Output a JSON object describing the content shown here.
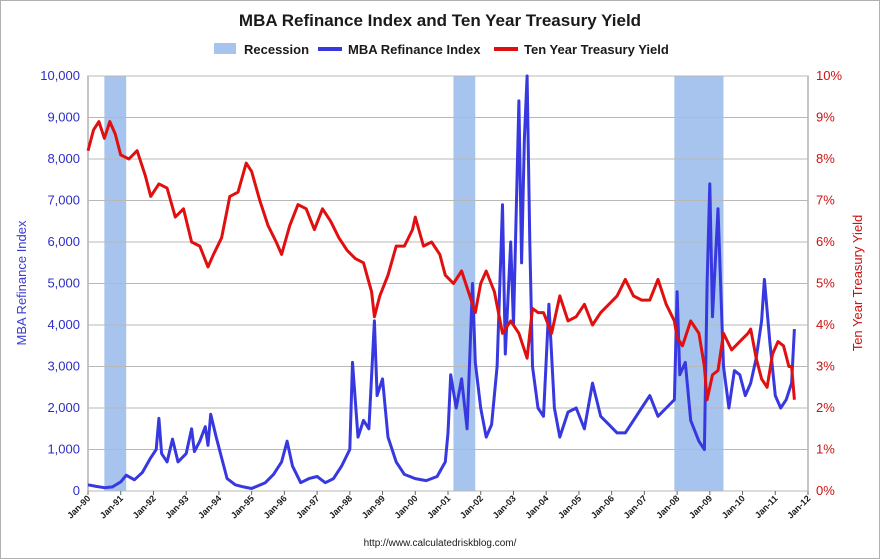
{
  "chart_data": {
    "type": "line",
    "title": "MBA Refinance Index and Ten Year Treasury Yield",
    "legend": [
      {
        "label": "Recession",
        "kind": "band",
        "color": "#a6c4ee"
      },
      {
        "label": "MBA Refinance Index",
        "kind": "line",
        "color": "#3838e0"
      },
      {
        "label": "Ten Year Treasury Yield",
        "kind": "line",
        "color": "#e01010"
      }
    ],
    "legend_position": "top-center",
    "grid": true,
    "x_axis": {
      "type": "date",
      "range": [
        "1990-01",
        "2012-01"
      ],
      "tick_labels": [
        "Jan-90",
        "Jan-91",
        "Jan-92",
        "Jan-93",
        "Jan-94",
        "Jan-95",
        "Jan-96",
        "Jan-97",
        "Jan-98",
        "Jan-99",
        "Jan-00",
        "Jan-01",
        "Jan-02",
        "Jan-03",
        "Jan-04",
        "Jan-05",
        "Jan-06",
        "Jan-07",
        "Jan-08",
        "Jan-09",
        "Jan-10",
        "Jan-11",
        "Jan-12"
      ]
    },
    "y_left": {
      "label": "MBA Refinance Index",
      "range": [
        0,
        10000
      ],
      "tick_labels": [
        "0",
        "1,000",
        "2,000",
        "3,000",
        "4,000",
        "5,000",
        "6,000",
        "7,000",
        "8,000",
        "9,000",
        "10,000"
      ]
    },
    "y_right": {
      "label": "Ten Year Treasury Yield",
      "range": [
        0,
        10
      ],
      "unit": "%",
      "tick_labels": [
        "0%",
        "1%",
        "2%",
        "3%",
        "4%",
        "5%",
        "6%",
        "7%",
        "8%",
        "9%",
        "10%"
      ]
    },
    "recessions": [
      {
        "start": "1990-07",
        "end": "1991-03"
      },
      {
        "start": "2001-03",
        "end": "2001-11"
      },
      {
        "start": "2007-12",
        "end": "2009-06"
      }
    ],
    "series": [
      {
        "name": "MBA Refinance Index",
        "axis": "left",
        "color": "#3838e0",
        "points": [
          [
            "1990-01",
            150
          ],
          [
            "1990-04",
            110
          ],
          [
            "1990-07",
            80
          ],
          [
            "1990-10",
            100
          ],
          [
            "1991-01",
            220
          ],
          [
            "1991-03",
            380
          ],
          [
            "1991-06",
            270
          ],
          [
            "1991-09",
            450
          ],
          [
            "1991-12",
            800
          ],
          [
            "1992-02",
            1000
          ],
          [
            "1992-03",
            1750
          ],
          [
            "1992-04",
            900
          ],
          [
            "1992-06",
            700
          ],
          [
            "1992-08",
            1250
          ],
          [
            "1992-10",
            700
          ],
          [
            "1993-01",
            900
          ],
          [
            "1993-03",
            1500
          ],
          [
            "1993-04",
            950
          ],
          [
            "1993-06",
            1200
          ],
          [
            "1993-08",
            1550
          ],
          [
            "1993-09",
            1100
          ],
          [
            "1993-10",
            1850
          ],
          [
            "1993-12",
            1300
          ],
          [
            "1994-02",
            800
          ],
          [
            "1994-04",
            300
          ],
          [
            "1994-07",
            150
          ],
          [
            "1994-10",
            100
          ],
          [
            "1995-01",
            60
          ],
          [
            "1995-06",
            200
          ],
          [
            "1995-09",
            400
          ],
          [
            "1995-12",
            700
          ],
          [
            "1996-02",
            1200
          ],
          [
            "1996-04",
            600
          ],
          [
            "1996-07",
            200
          ],
          [
            "1996-10",
            300
          ],
          [
            "1997-01",
            350
          ],
          [
            "1997-04",
            200
          ],
          [
            "1997-07",
            300
          ],
          [
            "1997-10",
            600
          ],
          [
            "1998-01",
            1000
          ],
          [
            "1998-02",
            3100
          ],
          [
            "1998-04",
            1300
          ],
          [
            "1998-06",
            1700
          ],
          [
            "1998-08",
            1500
          ],
          [
            "1998-10",
            4100
          ],
          [
            "1998-11",
            2300
          ],
          [
            "1999-01",
            2700
          ],
          [
            "1999-03",
            1300
          ],
          [
            "1999-06",
            700
          ],
          [
            "1999-09",
            400
          ],
          [
            "2000-01",
            300
          ],
          [
            "2000-05",
            250
          ],
          [
            "2000-09",
            350
          ],
          [
            "2000-12",
            700
          ],
          [
            "2001-01",
            1400
          ],
          [
            "2001-02",
            2800
          ],
          [
            "2001-04",
            2000
          ],
          [
            "2001-06",
            2700
          ],
          [
            "2001-08",
            1500
          ],
          [
            "2001-10",
            5000
          ],
          [
            "2001-11",
            3100
          ],
          [
            "2002-01",
            2000
          ],
          [
            "2002-03",
            1300
          ],
          [
            "2002-05",
            1600
          ],
          [
            "2002-07",
            3000
          ],
          [
            "2002-09",
            6900
          ],
          [
            "2002-10",
            3300
          ],
          [
            "2002-12",
            6000
          ],
          [
            "2003-01",
            4000
          ],
          [
            "2003-03",
            9400
          ],
          [
            "2003-04",
            5500
          ],
          [
            "2003-05",
            8500
          ],
          [
            "2003-06",
            10000
          ],
          [
            "2003-07",
            6000
          ],
          [
            "2003-08",
            3000
          ],
          [
            "2003-10",
            2000
          ],
          [
            "2003-12",
            1800
          ],
          [
            "2004-02",
            4500
          ],
          [
            "2004-04",
            2000
          ],
          [
            "2004-06",
            1300
          ],
          [
            "2004-09",
            1900
          ],
          [
            "2004-12",
            2000
          ],
          [
            "2005-03",
            1500
          ],
          [
            "2005-06",
            2600
          ],
          [
            "2005-09",
            1800
          ],
          [
            "2005-12",
            1600
          ],
          [
            "2006-03",
            1400
          ],
          [
            "2006-06",
            1400
          ],
          [
            "2006-09",
            1700
          ],
          [
            "2006-12",
            2000
          ],
          [
            "2007-03",
            2300
          ],
          [
            "2007-06",
            1800
          ],
          [
            "2007-09",
            2000
          ],
          [
            "2007-12",
            2200
          ],
          [
            "2008-01",
            4800
          ],
          [
            "2008-02",
            2800
          ],
          [
            "2008-04",
            3100
          ],
          [
            "2008-06",
            1700
          ],
          [
            "2008-09",
            1200
          ],
          [
            "2008-11",
            1000
          ],
          [
            "2008-12",
            5000
          ],
          [
            "2009-01",
            7400
          ],
          [
            "2009-02",
            4200
          ],
          [
            "2009-04",
            6800
          ],
          [
            "2009-06",
            3000
          ],
          [
            "2009-08",
            2000
          ],
          [
            "2009-10",
            2900
          ],
          [
            "2009-12",
            2800
          ],
          [
            "2010-02",
            2300
          ],
          [
            "2010-04",
            2600
          ],
          [
            "2010-06",
            3200
          ],
          [
            "2010-08",
            4100
          ],
          [
            "2010-09",
            5100
          ],
          [
            "2010-11",
            3600
          ],
          [
            "2011-01",
            2300
          ],
          [
            "2011-03",
            2000
          ],
          [
            "2011-05",
            2200
          ],
          [
            "2011-07",
            2600
          ],
          [
            "2011-08",
            3900
          ]
        ]
      },
      {
        "name": "Ten Year Treasury Yield",
        "axis": "right",
        "color": "#e01010",
        "points": [
          [
            "1990-01",
            8.2
          ],
          [
            "1990-03",
            8.7
          ],
          [
            "1990-05",
            8.9
          ],
          [
            "1990-07",
            8.5
          ],
          [
            "1990-09",
            8.9
          ],
          [
            "1990-11",
            8.6
          ],
          [
            "1991-01",
            8.1
          ],
          [
            "1991-04",
            8.0
          ],
          [
            "1991-07",
            8.2
          ],
          [
            "1991-10",
            7.6
          ],
          [
            "1991-12",
            7.1
          ],
          [
            "1992-03",
            7.4
          ],
          [
            "1992-06",
            7.3
          ],
          [
            "1992-09",
            6.6
          ],
          [
            "1992-12",
            6.8
          ],
          [
            "1993-03",
            6.0
          ],
          [
            "1993-06",
            5.9
          ],
          [
            "1993-09",
            5.4
          ],
          [
            "1993-11",
            5.7
          ],
          [
            "1994-02",
            6.1
          ],
          [
            "1994-05",
            7.1
          ],
          [
            "1994-08",
            7.2
          ],
          [
            "1994-11",
            7.9
          ],
          [
            "1995-01",
            7.7
          ],
          [
            "1995-04",
            7.0
          ],
          [
            "1995-07",
            6.4
          ],
          [
            "1995-10",
            6.0
          ],
          [
            "1995-12",
            5.7
          ],
          [
            "1996-03",
            6.4
          ],
          [
            "1996-06",
            6.9
          ],
          [
            "1996-09",
            6.8
          ],
          [
            "1996-12",
            6.3
          ],
          [
            "1997-03",
            6.8
          ],
          [
            "1997-06",
            6.5
          ],
          [
            "1997-09",
            6.1
          ],
          [
            "1997-12",
            5.8
          ],
          [
            "1998-03",
            5.6
          ],
          [
            "1998-06",
            5.5
          ],
          [
            "1998-09",
            4.8
          ],
          [
            "1998-10",
            4.2
          ],
          [
            "1998-12",
            4.7
          ],
          [
            "1999-03",
            5.2
          ],
          [
            "1999-06",
            5.9
          ],
          [
            "1999-09",
            5.9
          ],
          [
            "1999-12",
            6.3
          ],
          [
            "2000-01",
            6.6
          ],
          [
            "2000-04",
            5.9
          ],
          [
            "2000-07",
            6.0
          ],
          [
            "2000-10",
            5.7
          ],
          [
            "2000-12",
            5.2
          ],
          [
            "2001-03",
            5.0
          ],
          [
            "2001-06",
            5.3
          ],
          [
            "2001-09",
            4.7
          ],
          [
            "2001-11",
            4.3
          ],
          [
            "2002-01",
            5.0
          ],
          [
            "2002-03",
            5.3
          ],
          [
            "2002-06",
            4.8
          ],
          [
            "2002-09",
            3.8
          ],
          [
            "2002-12",
            4.1
          ],
          [
            "2003-03",
            3.8
          ],
          [
            "2003-06",
            3.2
          ],
          [
            "2003-08",
            4.4
          ],
          [
            "2003-10",
            4.3
          ],
          [
            "2003-12",
            4.3
          ],
          [
            "2004-03",
            3.8
          ],
          [
            "2004-06",
            4.7
          ],
          [
            "2004-09",
            4.1
          ],
          [
            "2004-12",
            4.2
          ],
          [
            "2005-03",
            4.5
          ],
          [
            "2005-06",
            4.0
          ],
          [
            "2005-09",
            4.3
          ],
          [
            "2005-12",
            4.5
          ],
          [
            "2006-03",
            4.7
          ],
          [
            "2006-06",
            5.1
          ],
          [
            "2006-09",
            4.7
          ],
          [
            "2006-12",
            4.6
          ],
          [
            "2007-03",
            4.6
          ],
          [
            "2007-06",
            5.1
          ],
          [
            "2007-09",
            4.5
          ],
          [
            "2007-12",
            4.1
          ],
          [
            "2008-01",
            3.7
          ],
          [
            "2008-03",
            3.5
          ],
          [
            "2008-06",
            4.1
          ],
          [
            "2008-09",
            3.8
          ],
          [
            "2008-11",
            3.0
          ],
          [
            "2008-12",
            2.2
          ],
          [
            "2009-02",
            2.8
          ],
          [
            "2009-04",
            2.9
          ],
          [
            "2009-06",
            3.8
          ],
          [
            "2009-09",
            3.4
          ],
          [
            "2009-12",
            3.6
          ],
          [
            "2010-03",
            3.8
          ],
          [
            "2010-04",
            3.9
          ],
          [
            "2010-06",
            3.2
          ],
          [
            "2010-08",
            2.7
          ],
          [
            "2010-10",
            2.5
          ],
          [
            "2010-12",
            3.3
          ],
          [
            "2011-02",
            3.6
          ],
          [
            "2011-04",
            3.5
          ],
          [
            "2011-06",
            3.0
          ],
          [
            "2011-07",
            3.0
          ],
          [
            "2011-08",
            2.2
          ]
        ]
      }
    ]
  },
  "source_url": "http://www.calculatedriskblog.com/"
}
